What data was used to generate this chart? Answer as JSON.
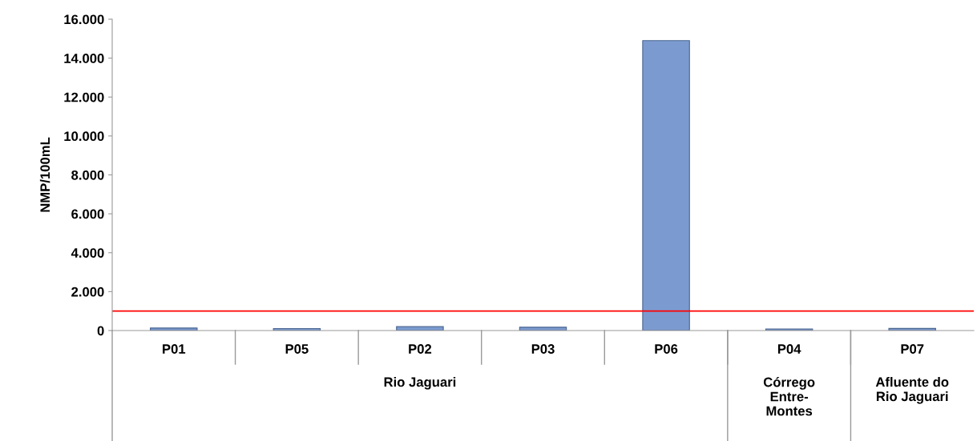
{
  "chart_data": {
    "type": "bar",
    "ylabel": "NMP/100mL",
    "categories": [
      "P01",
      "P05",
      "P02",
      "P03",
      "P06",
      "P04",
      "P07"
    ],
    "values": [
      130,
      100,
      200,
      170,
      14900,
      80,
      110
    ],
    "color": "#7b9bd0",
    "ylim": [
      0,
      16000
    ],
    "yticks": [
      {
        "value": 0,
        "label": "0"
      },
      {
        "value": 2000,
        "label": "2.000"
      },
      {
        "value": 4000,
        "label": "4.000"
      },
      {
        "value": 6000,
        "label": "6.000"
      },
      {
        "value": 8000,
        "label": "8.000"
      },
      {
        "value": 10000,
        "label": "10.000"
      },
      {
        "value": 12000,
        "label": "12.000"
      },
      {
        "value": 14000,
        "label": "14.000"
      },
      {
        "value": 16000,
        "label": "16.000"
      }
    ],
    "ref_lines": [
      {
        "axis": "y",
        "value": 1000,
        "color": "#ff0000"
      }
    ],
    "annotations": [
      "Rio Jaguari",
      "Córrego\nEntre-\nMontes",
      "Afluente do\nRio Jaguari"
    ],
    "grid": false,
    "legend": false
  }
}
